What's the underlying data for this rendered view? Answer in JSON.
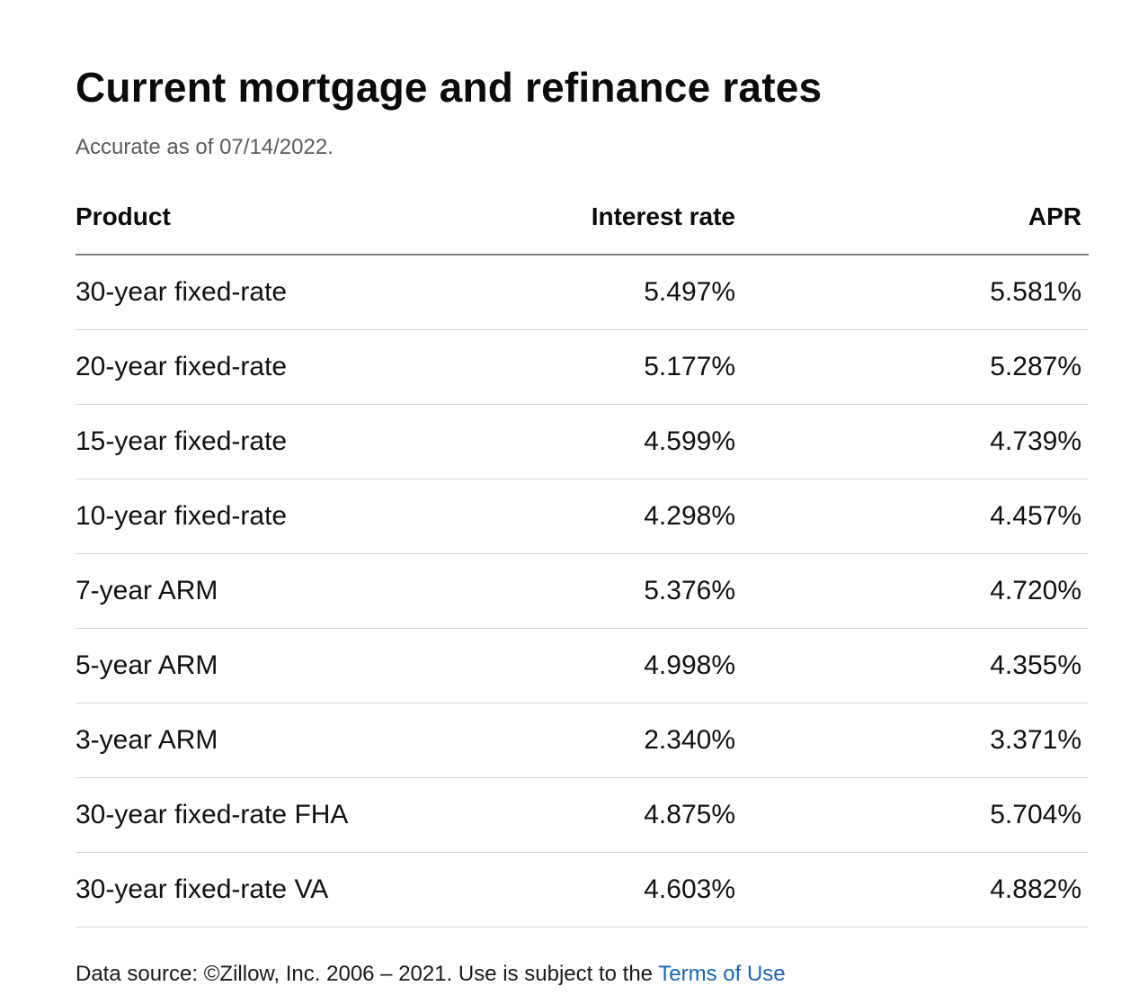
{
  "header": {
    "title": "Current mortgage and refinance rates",
    "subtitle": "Accurate as of 07/14/2022."
  },
  "table": {
    "columns": {
      "product": "Product",
      "interest_rate": "Interest rate",
      "apr": "APR"
    },
    "rows": [
      {
        "product": "30-year fixed-rate",
        "interest_rate": "5.497%",
        "apr": "5.581%"
      },
      {
        "product": "20-year fixed-rate",
        "interest_rate": "5.177%",
        "apr": "5.287%"
      },
      {
        "product": "15-year fixed-rate",
        "interest_rate": "4.599%",
        "apr": "4.739%"
      },
      {
        "product": "10-year fixed-rate",
        "interest_rate": "4.298%",
        "apr": "4.457%"
      },
      {
        "product": "7-year ARM",
        "interest_rate": "5.376%",
        "apr": "4.720%"
      },
      {
        "product": "5-year ARM",
        "interest_rate": "4.998%",
        "apr": "4.355%"
      },
      {
        "product": "3-year ARM",
        "interest_rate": "2.340%",
        "apr": "3.371%"
      },
      {
        "product": "30-year fixed-rate FHA",
        "interest_rate": "4.875%",
        "apr": "5.704%"
      },
      {
        "product": "30-year fixed-rate VA",
        "interest_rate": "4.603%",
        "apr": "4.882%"
      }
    ]
  },
  "footer": {
    "source_text": "Data source: ©Zillow, Inc. 2006 – 2021. Use is subject to the ",
    "link_label": "Terms of Use"
  },
  "colors": {
    "link": "#1a66b3",
    "header_rule": "#7a7a7a",
    "row_rule": "#d6d6d6",
    "subtitle": "#5c5c5c"
  }
}
